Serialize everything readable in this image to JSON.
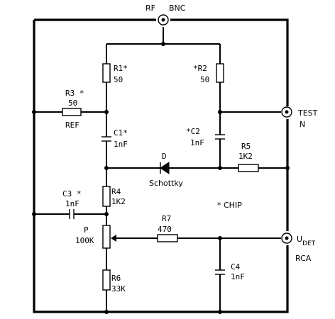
{
  "connectors": {
    "rf": "RF",
    "bnc": "BNC",
    "test": "TEST",
    "n": "N",
    "udet_main": "U",
    "udet_sub": "DET",
    "rca": "RCA"
  },
  "components": {
    "r1": {
      "name": "R1",
      "mark": "*",
      "value": "50"
    },
    "r2": {
      "name": "R2",
      "mark": "*",
      "value": "50"
    },
    "r3": {
      "name": "R3",
      "mark": "*",
      "value": "50",
      "note": "REF"
    },
    "c1": {
      "name": "C1",
      "mark": "*",
      "value": "1nF"
    },
    "c2": {
      "name": "C2",
      "mark": "*",
      "value": "1nF"
    },
    "r5": {
      "name": "R5",
      "value": "1K2"
    },
    "d": {
      "name": "D",
      "type": "Schottky"
    },
    "r4": {
      "name": "R4",
      "value": "1K2"
    },
    "c3": {
      "name": "C3",
      "mark": "*",
      "value": "1nF"
    },
    "p": {
      "name": "P",
      "value": "100K"
    },
    "r7": {
      "name": "R7",
      "value": "470"
    },
    "c4": {
      "name": "C4",
      "value": "1nF"
    },
    "r6": {
      "name": "R6",
      "value": "33K"
    }
  },
  "legend": {
    "chip": "* CHIP"
  }
}
